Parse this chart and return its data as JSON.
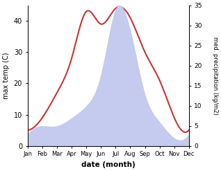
{
  "months": [
    1,
    2,
    3,
    4,
    5,
    6,
    7,
    8,
    9,
    10,
    11,
    12
  ],
  "month_labels": [
    "Jan",
    "Feb",
    "Mar",
    "Apr",
    "May",
    "Jun",
    "Jul",
    "Aug",
    "Sep",
    "Oct",
    "Nov",
    "Dec"
  ],
  "temperature": [
    5,
    9,
    17,
    28,
    43,
    39,
    44,
    41,
    30,
    21,
    9,
    5
  ],
  "precipitation": [
    3,
    5,
    5,
    7,
    10,
    18,
    34,
    29,
    13,
    6,
    2,
    3
  ],
  "temp_ylim": [
    0,
    45
  ],
  "precip_ylim": [
    0,
    35
  ],
  "temp_color": "#cc3333",
  "precip_fill_color": "#c5cbee",
  "xlabel": "date (month)",
  "ylabel_left": "max temp (C)",
  "ylabel_right": "med. precipitation (kg/m2)",
  "background_color": "#ffffff",
  "temp_yticks": [
    0,
    10,
    20,
    30,
    40
  ],
  "precip_yticks": [
    0,
    5,
    10,
    15,
    20,
    25,
    30,
    35
  ],
  "figsize": [
    3.18,
    2.47
  ],
  "dpi": 100
}
